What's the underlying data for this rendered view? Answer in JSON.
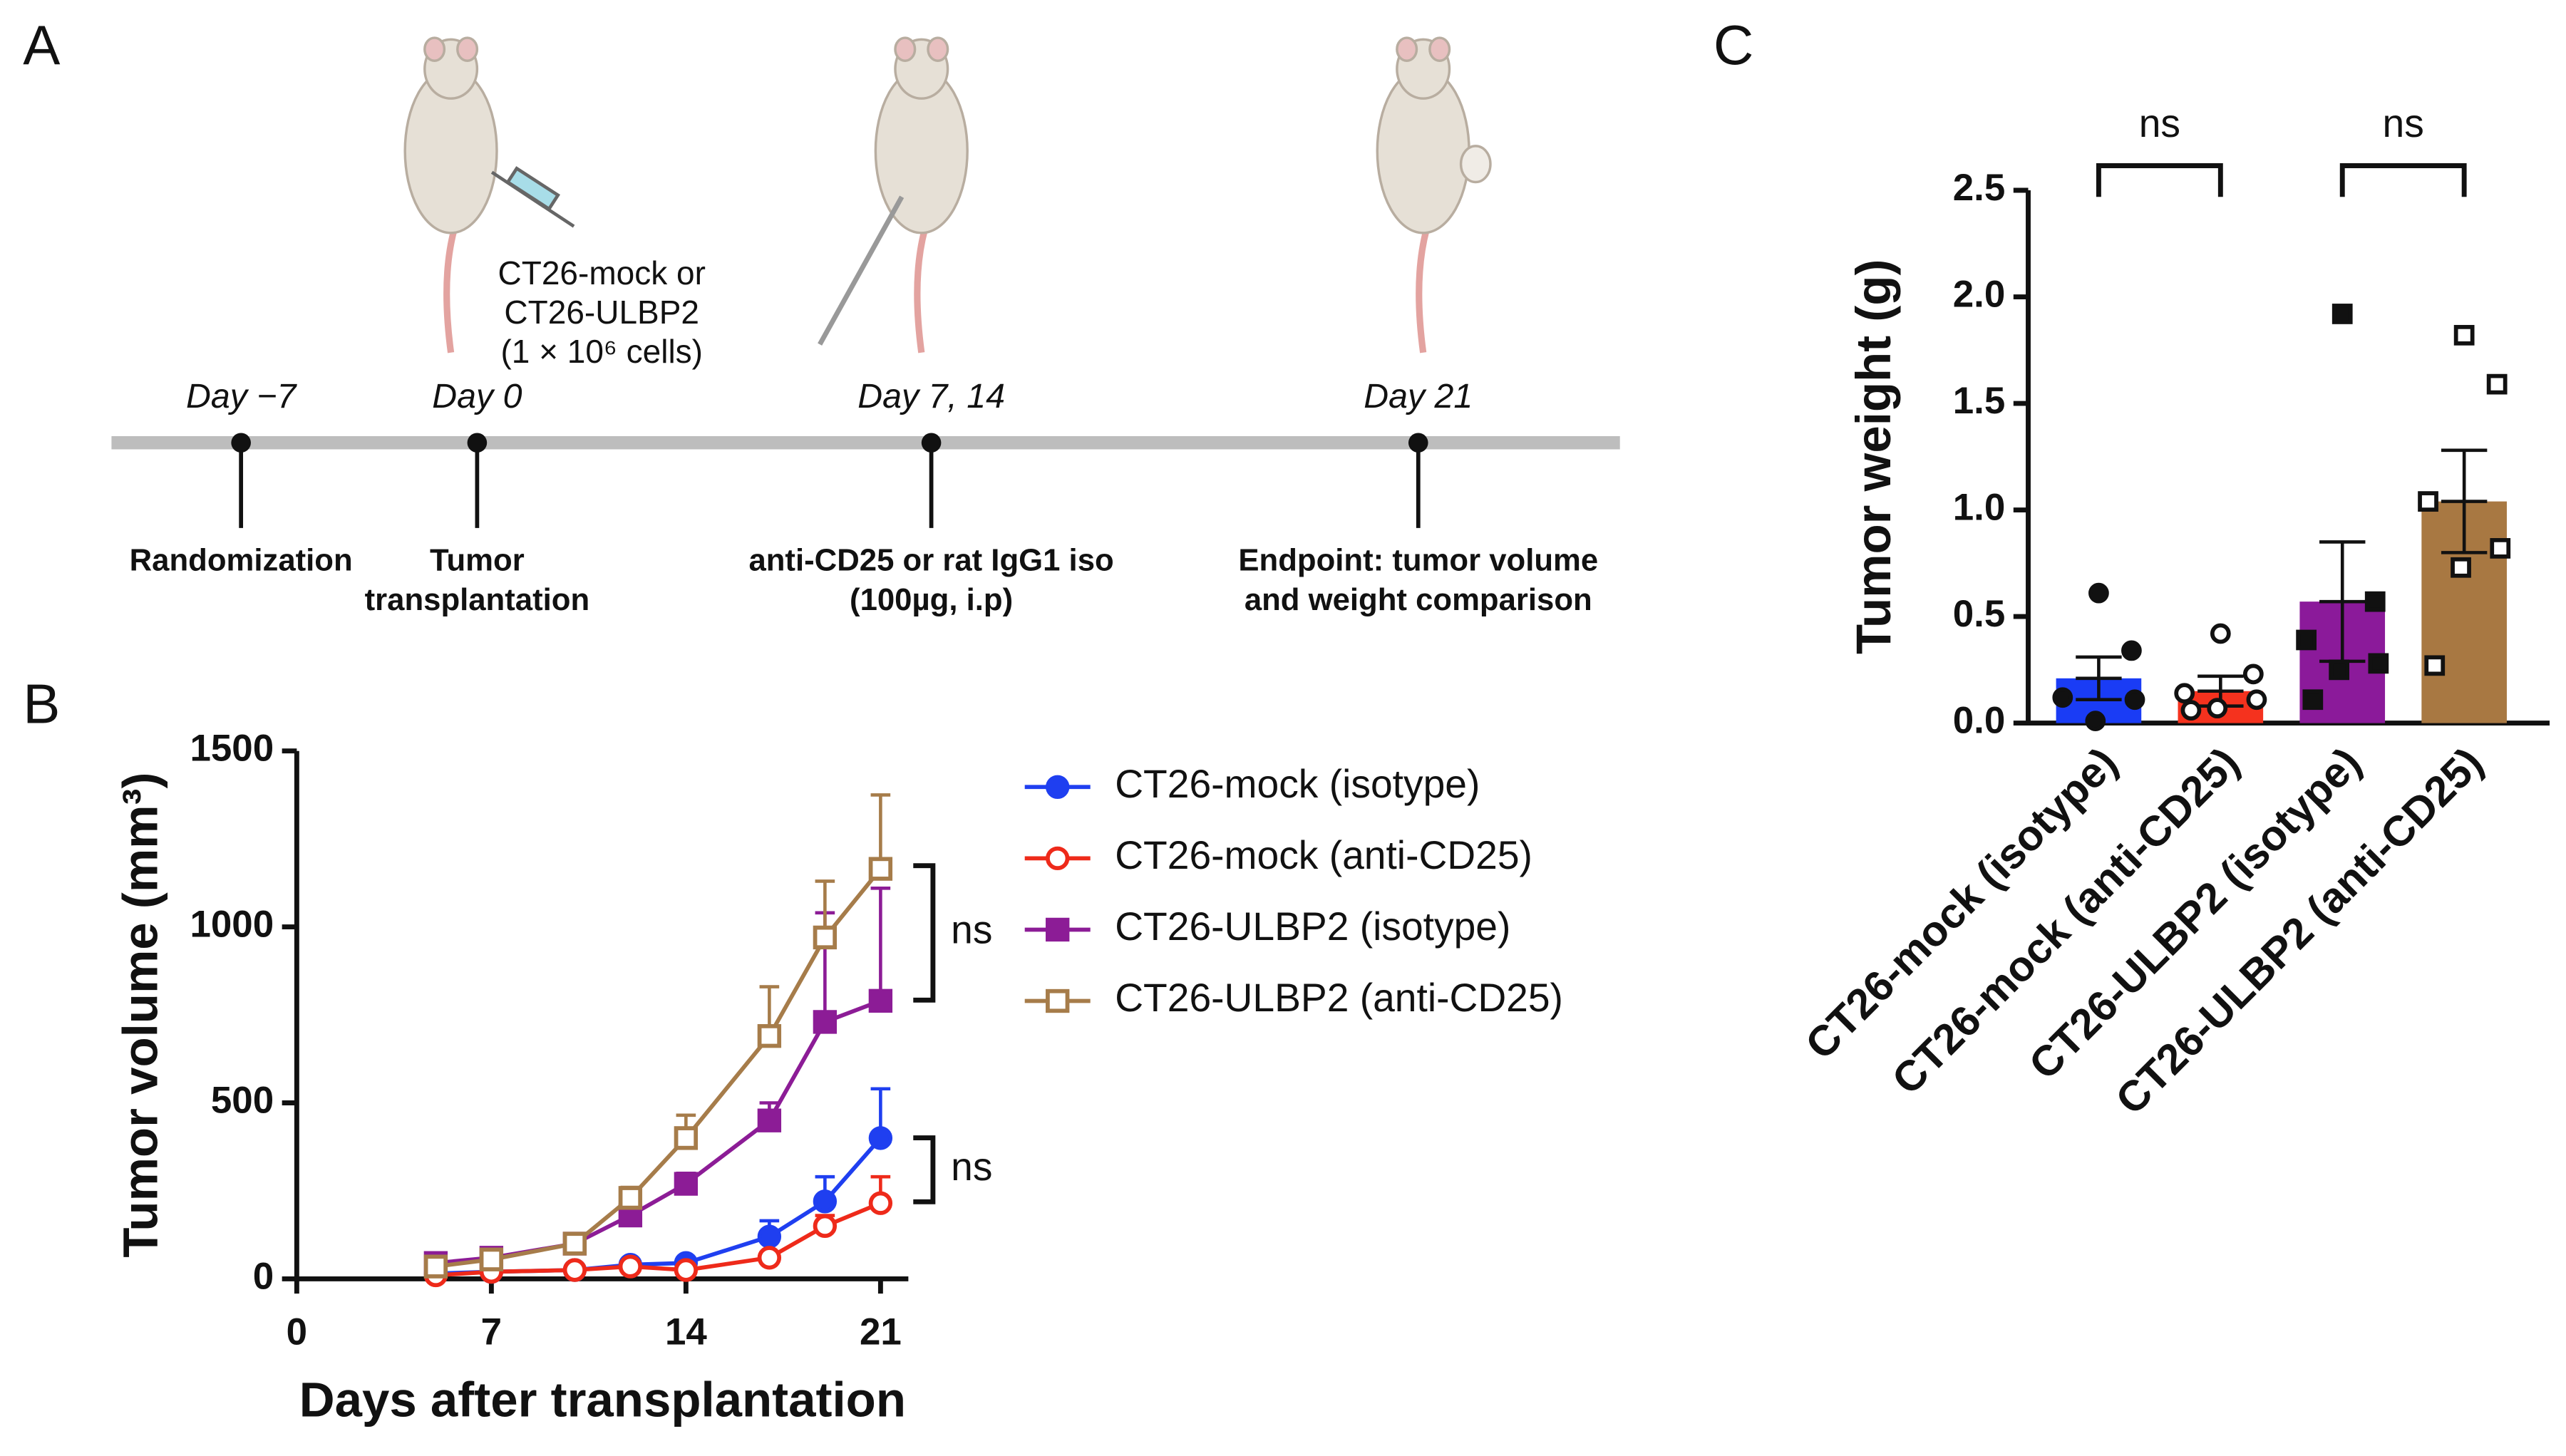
{
  "panel_labels": [
    "A",
    "B",
    "C"
  ],
  "timeline": {
    "events": [
      {
        "day": "Day −7",
        "label": [
          "Randomization"
        ]
      },
      {
        "day": "Day 0",
        "label": [
          "Tumor",
          "transplantation"
        ]
      },
      {
        "day": "Day 7, 14",
        "label": [
          "anti-CD25 or rat IgG1 iso",
          "(100µg, i.p)"
        ]
      },
      {
        "day": "Day 21",
        "label": [
          "Endpoint: tumor volume",
          "and weight comparison"
        ]
      }
    ],
    "injection_note": [
      "CT26-mock or",
      "CT26-ULBP2",
      "(1 × 10⁶ cells)"
    ]
  },
  "chart_data": [
    {
      "type": "line",
      "x_label": "Days after transplantation",
      "y_label": "Tumor volume (mm³)",
      "x": [
        5,
        7,
        10,
        12,
        14,
        17,
        19,
        21
      ],
      "series": [
        {
          "name": "CT26-mock (isotype)",
          "color": "#1f3ff0",
          "marker": "circle",
          "filled": true,
          "values": [
            15,
            20,
            25,
            40,
            45,
            120,
            220,
            400
          ],
          "errors": [
            5,
            5,
            8,
            10,
            10,
            45,
            70,
            140
          ]
        },
        {
          "name": "CT26-mock (anti-CD25)",
          "color": "#ee2a1a",
          "marker": "circle",
          "filled": false,
          "values": [
            10,
            20,
            25,
            35,
            25,
            60,
            150,
            215
          ],
          "errors": [
            4,
            5,
            6,
            8,
            8,
            15,
            30,
            75
          ]
        },
        {
          "name": "CT26-ULBP2 (isotype)",
          "color": "#8c1c96",
          "marker": "square",
          "filled": true,
          "values": [
            45,
            60,
            100,
            180,
            270,
            450,
            730,
            790
          ],
          "errors": [
            8,
            10,
            15,
            25,
            30,
            50,
            310,
            320
          ]
        },
        {
          "name": "CT26-ULBP2 (anti-CD25)",
          "color": "#a67c4a",
          "marker": "square",
          "filled": false,
          "values": [
            35,
            55,
            100,
            230,
            400,
            690,
            970,
            1165
          ],
          "errors": [
            8,
            10,
            15,
            30,
            65,
            140,
            160,
            210
          ]
        }
      ],
      "xlim": [
        0,
        22
      ],
      "xticks": [
        0,
        7,
        14,
        21
      ],
      "ylim": [
        0,
        1500
      ],
      "yticks": [
        0,
        500,
        1000,
        1500
      ],
      "annotations": [
        "ns",
        "ns"
      ],
      "legend": "right"
    },
    {
      "type": "bar",
      "y_label": "Tumor weight (g)",
      "categories": [
        "CT26-mock (isotype)",
        "CT26-mock (anti-CD25)",
        "CT26-ULBP2 (isotype)",
        "CT26-ULBP2 (anti-CD25)"
      ],
      "values": [
        0.21,
        0.15,
        0.57,
        1.04
      ],
      "errors": [
        0.1,
        0.07,
        0.28,
        0.24
      ],
      "colors": [
        "#1a3cf5",
        "#f5321e",
        "#8b1a9a",
        "#a87842"
      ],
      "points": [
        [
          0.61,
          0.34,
          0.12,
          0.11,
          0.01
        ],
        [
          0.42,
          0.23,
          0.14,
          0.11,
          0.07,
          0.06
        ],
        [
          1.92,
          0.57,
          0.39,
          0.28,
          0.25,
          0.11
        ],
        [
          1.82,
          1.59,
          1.04,
          0.82,
          0.73,
          0.27
        ]
      ],
      "point_markers": [
        "circle",
        "circle",
        "square",
        "square"
      ],
      "point_filled": [
        true,
        false,
        true,
        false
      ],
      "ylim": [
        0,
        2.5
      ],
      "yticks": [
        {
          "value": 0,
          "label": "0.0"
        },
        0.5,
        {
          "value": 1,
          "label": "1.0"
        },
        1.5,
        {
          "value": 2,
          "label": "2.0"
        },
        2.5
      ],
      "annotations": [
        "ns",
        "ns"
      ]
    }
  ]
}
